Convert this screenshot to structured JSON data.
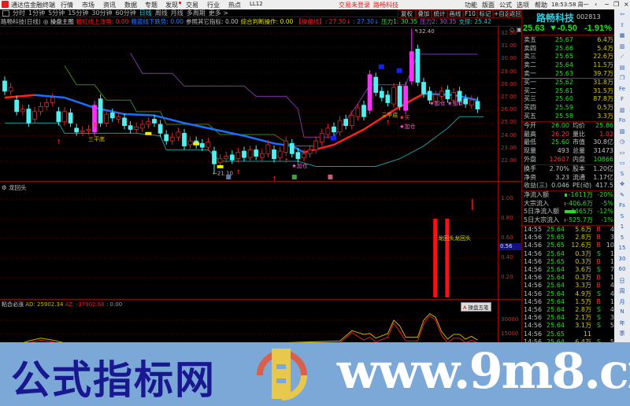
{
  "menubar": {
    "app_title": "通达信金融终端",
    "items": [
      "行情",
      "市场",
      "资讯",
      "数据",
      "专题",
      "发现",
      "交易",
      "行业",
      "热点",
      "LL12"
    ],
    "login_status": "交易未登录",
    "stock_name": "路畅科技",
    "right_items": [
      "功能",
      "版面",
      "公式",
      "选项",
      "帮助"
    ],
    "clock": "18:53:58 周一"
  },
  "periods": [
    "分时",
    "1分钟",
    "5分钟",
    "15分钟",
    "30分钟",
    "60分钟",
    "日线",
    "周线",
    "月线",
    "多周期",
    "更多 >"
  ],
  "active_period": "日线",
  "toolbar": [
    "复权",
    "叠加",
    "统计",
    "画线",
    "F10",
    "标记",
    "+自选",
    "返回"
  ],
  "info": {
    "title": "路畅科技(日线)",
    "indicator": "◎ 操盘主图",
    "items": [
      {
        "text": "粗红线上涨势: 0.00",
        "color": "#ff2020"
      },
      {
        "text": "粗蓝线下跌势: 0.00",
        "color": "#2a7cff"
      },
      {
        "text": "参照其它指标: 0.00",
        "color": "#c0c0c0"
      },
      {
        "text": "综合判断操作: 0.00",
        "color": "#e0e000"
      },
      {
        "text": "【操盘线】: 27.30↓",
        "color": "#ff2020"
      },
      {
        "text": ": 27.30↓",
        "color": "#2a7cff"
      },
      {
        "text": "压力1: 30.35",
        "color": "#50d050"
      },
      {
        "text": "压力2: 30.35",
        "color": "#b050e0"
      },
      {
        "text": "支撑: 25.42",
        "color": "#20c0c0"
      }
    ]
  },
  "price_axis": [
    "32.00",
    "31.00",
    "30.00",
    "29.00",
    "28.00",
    "27.00",
    "26.00",
    "25.00",
    "24.00",
    "23.00",
    "22.00"
  ],
  "chart_data": {
    "type": "candlestick",
    "open": [
      28.3,
      27.5,
      26.8,
      25.9,
      26.1,
      25.3,
      25.9,
      26.3,
      26.6,
      25.9,
      25.1,
      25.8,
      24.6,
      24.3,
      24.4,
      24.3,
      26.9,
      25.0,
      25.8,
      25.3,
      25.4,
      24.8,
      24.5,
      24.6,
      24.9,
      25.3,
      24.9,
      24.1,
      23.6,
      23.9,
      24.2,
      23.3,
      23.6,
      23.4,
      23.1,
      22.8,
      21.9,
      22.2,
      22.5,
      22.2,
      22.8,
      22.3,
      22.9,
      22.3,
      22.6,
      22.9,
      22.3,
      22.7,
      23.4,
      22.7,
      22.3,
      22.6,
      22.9,
      23.5,
      24.1,
      24.7,
      24.3,
      25.3,
      24.8,
      25.5,
      26.4,
      26.0,
      28.6,
      27.5,
      27.2,
      26.5,
      27.9,
      26.0,
      28.3,
      30.8,
      28.2,
      27.5,
      26.7,
      27.1,
      27.6,
      26.8,
      27.5,
      26.9,
      26.4,
      26.7
    ],
    "close": [
      27.5,
      27.8,
      25.9,
      26.1,
      25.0,
      25.9,
      26.3,
      26.6,
      27.0,
      25.1,
      25.9,
      25.0,
      24.3,
      24.4,
      24.5,
      26.4,
      25.0,
      25.7,
      25.4,
      25.5,
      24.8,
      24.5,
      24.7,
      24.9,
      25.1,
      25.0,
      24.2,
      23.6,
      23.9,
      24.3,
      23.2,
      23.6,
      23.3,
      23.1,
      23.5,
      21.8,
      22.2,
      22.4,
      22.1,
      22.7,
      22.3,
      22.9,
      22.4,
      22.6,
      23.3,
      22.2,
      22.8,
      23.6,
      22.6,
      22.2,
      22.6,
      22.9,
      23.6,
      24.2,
      24.6,
      24.3,
      25.2,
      24.8,
      25.6,
      26.2,
      25.5,
      28.8,
      27.4,
      27.0,
      26.6,
      27.8,
      26.3,
      27.9,
      30.6,
      28.2,
      27.3,
      26.8,
      27.2,
      27.5,
      26.9,
      27.4,
      26.7,
      26.5,
      26.8,
      26.1
    ],
    "signal_bars": [
      15,
      61,
      67,
      68
    ],
    "high_label": "32.40",
    "low_label": "21.10",
    "ma": [
      [
        0,
        27.0
      ],
      [
        5,
        27.2
      ],
      [
        10,
        27.0
      ],
      [
        15,
        26.2
      ],
      [
        20,
        25.7
      ],
      [
        25,
        25.6
      ],
      [
        30,
        25.0
      ],
      [
        35,
        24.5
      ],
      [
        40,
        24.0
      ],
      [
        45,
        23.4
      ],
      [
        48,
        23.2
      ],
      [
        50,
        22.7
      ],
      [
        55,
        23.3
      ],
      [
        60,
        24.5
      ],
      [
        65,
        26.0
      ],
      [
        68,
        26.8
      ],
      [
        70,
        27.3
      ],
      [
        75,
        27.2
      ],
      [
        79,
        26.8
      ]
    ],
    "support": [
      [
        0,
        25.0
      ],
      [
        9,
        25.0
      ],
      [
        10,
        24.2
      ],
      [
        22,
        24.2
      ],
      [
        26,
        24.0
      ],
      [
        27,
        22.9
      ],
      [
        34,
        22.9
      ],
      [
        36,
        22.0
      ],
      [
        49,
        22.0
      ],
      [
        52,
        21.6
      ],
      [
        62,
        21.6
      ],
      [
        66,
        22.2
      ],
      [
        70,
        23.2
      ],
      [
        74,
        24.6
      ],
      [
        76,
        25.5
      ],
      [
        80,
        25.5
      ]
    ],
    "pressure1": [
      [
        10,
        29.5
      ],
      [
        12,
        28.0
      ],
      [
        15,
        28.0
      ],
      [
        17,
        26.8
      ],
      [
        21,
        26.8
      ],
      [
        22,
        25.9
      ],
      [
        26,
        25.9
      ],
      [
        27,
        24.9
      ],
      [
        34,
        24.9
      ],
      [
        36,
        24.1
      ],
      [
        45,
        24.1
      ],
      [
        48,
        23.2
      ],
      [
        52,
        23.2
      ]
    ],
    "pressure2": [
      [
        21,
        30.5
      ],
      [
        23,
        28.9
      ],
      [
        28,
        28.9
      ],
      [
        30,
        27.9
      ],
      [
        40,
        27.9
      ],
      [
        42,
        27.1
      ],
      [
        47,
        27.1
      ],
      [
        49,
        26.1
      ],
      [
        50,
        23.9
      ],
      [
        55,
        23.9
      ],
      [
        59,
        26.5
      ],
      [
        61,
        28.0
      ],
      [
        67,
        28.0
      ],
      [
        69,
        30.4
      ],
      [
        79,
        30.4
      ]
    ],
    "annotations": [
      {
        "text": "三平底",
        "i": 15,
        "p": 23.6,
        "color": "#d8c800"
      },
      {
        "text": "三平底",
        "i": 64,
        "p": 25.5,
        "color": "#d8c800"
      },
      {
        "text": "★加仓",
        "i": 49,
        "p": 21.5,
        "color": "#ff60d0"
      },
      {
        "text": "★加仓",
        "i": 67,
        "p": 24.6,
        "color": "#ff60d0"
      },
      {
        "text": "★加仓",
        "i": 72,
        "p": 26.4,
        "color": "#ff60d0"
      },
      {
        "text": "★加仓",
        "i": 75,
        "p": 26.4,
        "color": "#ff60d0"
      },
      {
        "text": "★买",
        "i": 67,
        "p": 25.3,
        "color": "#ff4040"
      }
    ],
    "buy_arrows": [
      9,
      15,
      39,
      45,
      47,
      64
    ]
  },
  "panel2": {
    "title": "龙回头",
    "axis": [
      "1.00",
      "0.80",
      "0.60",
      "0.40",
      "0.20"
    ],
    "current": "0.56",
    "bar_label": "龙回头龙回头",
    "chart_data": {
      "type": "bar",
      "bars": [
        {
          "i": 72,
          "value": 0.8
        },
        {
          "i": 74,
          "value": 0.8
        }
      ]
    }
  },
  "panel3": {
    "title": "粘合必涨",
    "ad": "AD: 25902.34",
    "az": "AZ: -37902.66",
    "extra": ": 0.00",
    "axis": [
      "30000",
      "15000"
    ],
    "chart_data": {
      "type": "line",
      "series": [
        {
          "name": "AD",
          "color": "#c8b400",
          "points": [
            [
              0,
              0
            ],
            [
              4,
              8000
            ],
            [
              6,
              11000
            ],
            [
              8,
              9000
            ],
            [
              10,
              6000
            ],
            [
              20,
              2000
            ],
            [
              30,
              3000
            ],
            [
              56,
              8000
            ],
            [
              58,
              19000
            ],
            [
              60,
              15000
            ],
            [
              61,
              16000
            ],
            [
              62,
              11000
            ],
            [
              64,
              16000
            ],
            [
              65,
              30000
            ],
            [
              66,
              24000
            ],
            [
              67,
              12000
            ],
            [
              69,
              12000
            ],
            [
              70,
              30000
            ],
            [
              71,
              37000
            ],
            [
              72,
              33000
            ],
            [
              73,
              18000
            ],
            [
              74,
              10000
            ],
            [
              75,
              15000
            ],
            [
              76,
              15000
            ],
            [
              77,
              10000
            ],
            [
              78,
              13000
            ],
            [
              79,
              9000
            ]
          ]
        },
        {
          "name": "AZ",
          "color": "#e02020",
          "points": [
            [
              0,
              0
            ],
            [
              4,
              6000
            ],
            [
              6,
              9000
            ],
            [
              8,
              7000
            ],
            [
              10,
              4000
            ],
            [
              20,
              1000
            ],
            [
              30,
              2000
            ],
            [
              56,
              6000
            ],
            [
              58,
              17000
            ],
            [
              60,
              9000
            ],
            [
              61,
              12000
            ],
            [
              62,
              7000
            ],
            [
              64,
              12000
            ],
            [
              65,
              27000
            ],
            [
              66,
              18000
            ],
            [
              67,
              8000
            ],
            [
              69,
              8000
            ],
            [
              70,
              26000
            ],
            [
              71,
              35000
            ],
            [
              72,
              30000
            ],
            [
              73,
              14000
            ],
            [
              74,
              6000
            ],
            [
              75,
              11000
            ],
            [
              76,
              11000
            ],
            [
              77,
              6000
            ],
            [
              78,
              9000
            ],
            [
              79,
              6000
            ]
          ]
        }
      ]
    }
  },
  "quote": {
    "name": "路畅科技",
    "code": "002813",
    "price": "25.63",
    "change": "▼-0.50",
    "pct": "-1.91%",
    "asks": [
      [
        "卖五",
        "25.67",
        "6.4万"
      ],
      [
        "卖四",
        "25.66",
        "5.4万"
      ],
      [
        "卖三",
        "25.65",
        "22.6万"
      ],
      [
        "卖二",
        "25.64",
        "11.5万"
      ],
      [
        "卖一",
        "25.63",
        "39.7万"
      ]
    ],
    "bids": [
      [
        "买一",
        "25.62",
        "31.8万"
      ],
      [
        "买二",
        "25.61",
        "31.5万"
      ],
      [
        "买三",
        "25.60",
        "87.8万"
      ],
      [
        "买四",
        "25.59",
        "0.5万"
      ],
      [
        "买五",
        "25.58",
        "3.3万"
      ]
    ],
    "stats": [
      [
        "今开",
        "26.00",
        "#20e020",
        "均价",
        "25.86",
        "#20e020"
      ],
      [
        "最高",
        "26.20",
        "#ff3030",
        "量比",
        "1.02",
        "#ff3030"
      ],
      [
        "最低",
        "25.60",
        "#20e020",
        "市值",
        "30.8亿",
        "#c0c0c0"
      ],
      [
        "现量",
        "493",
        "#c0c0c0",
        "总量",
        "31473",
        "#c0c0c0"
      ],
      [
        "外盘",
        "12607",
        "#ff3030",
        "内盘",
        "10866",
        "#20e020"
      ]
    ],
    "stats2": [
      [
        "换手",
        "2.70%",
        "股本",
        "1.20亿"
      ],
      [
        "净资",
        "3.23",
        "流通",
        "1.17亿"
      ],
      [
        "收益(三)",
        "0.046",
        "PE(动)",
        "417.5"
      ]
    ],
    "flows": [
      [
        "净流入额",
        "-1611万",
        "-20%",
        0.2
      ],
      [
        "大宗流入",
        "-406.6万",
        "-5%",
        0.05
      ],
      [
        "5日净流入额",
        "-4465万",
        "-12%",
        1.0
      ],
      [
        "5日大宗流入",
        "-525.7万",
        "-1%",
        0.02
      ]
    ],
    "ticks": [
      [
        "14:55",
        "25.64",
        "5.6万",
        "B",
        "4"
      ],
      [
        "14:56",
        "25.65",
        "2.8万",
        "B",
        "3"
      ],
      [
        "14:56",
        "25.65",
        "12.6万",
        "B",
        "10"
      ],
      [
        "14:56",
        "25.64",
        "0.3万",
        "S",
        "1"
      ],
      [
        "14:56",
        "25.65",
        "0.3万",
        "B",
        "1"
      ],
      [
        "14:56",
        "25.64",
        "3.6万",
        "S",
        "7"
      ],
      [
        "14:56",
        "25.64",
        "0.3万",
        "B",
        "1"
      ],
      [
        "14:56",
        "25.64",
        "3.3万",
        "B",
        "4"
      ],
      [
        "14:56",
        "25.64",
        "4.9万",
        "S",
        "4"
      ],
      [
        "14:56",
        "25.64",
        "1.5万",
        "B",
        "1"
      ],
      [
        "14:56",
        "25.64",
        "2.8万",
        "S",
        "4"
      ],
      [
        "14:56",
        "25.64",
        "2.1万",
        "S",
        "3"
      ],
      [
        "14:56",
        "25.64",
        "3.1万",
        "S",
        "5"
      ],
      [
        "14:56",
        "25.65",
        "11",
        "",
        ""
      ],
      [
        "14:56",
        "25.64",
        "6.4万",
        "S",
        "5"
      ]
    ],
    "popup": "操盘五笔"
  },
  "sidebar": [
    "⇦",
    "⇧",
    "▦",
    "▥",
    "⟋",
    "▤",
    "❐",
    "Fe",
    "F",
    "▥",
    "Fo",
    "▧",
    "◷",
    "▭",
    "▭",
    "S",
    "✥",
    "✎",
    "Fs",
    "S",
    "1",
    "5",
    "15",
    "30",
    "60",
    "日",
    "周",
    "月",
    "N",
    "年",
    "季"
  ],
  "banner": {
    "site_name": "公式指标网",
    "url": "www.9m8.cn",
    "logo_text": "www.9m8.cn"
  }
}
